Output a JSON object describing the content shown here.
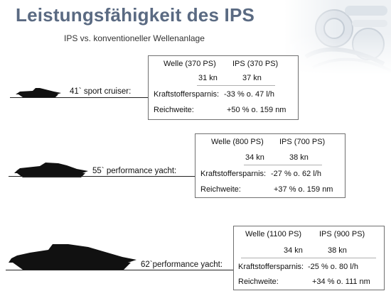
{
  "title": "Leistungsfähigkeit des IPS",
  "subtitle": "IPS vs. konventioneller Wellenanlage",
  "boats": [
    {
      "name": "41` sport cruiser:",
      "header": [
        "Welle (370 PS)",
        "IPS (370 PS)"
      ],
      "speed": [
        "31 kn",
        "37 kn"
      ],
      "fuel_label": "Kraftstoffersparnis:",
      "fuel_value": "-33 % o. 47 l/h",
      "range_label": "Reichweite:",
      "range_value": "+50 % o. 159 nm"
    },
    {
      "name": "55` performance yacht:",
      "header": [
        "Welle (800 PS)",
        "IPS (700 PS)"
      ],
      "speed": [
        "34 kn",
        "38 kn"
      ],
      "fuel_label": "Kraftstoffersparnis:",
      "fuel_value": "-27 % o. 62 l/h",
      "range_label": "Reichweite:",
      "range_value": "+37 % o. 159 nm"
    },
    {
      "name": "62`performance yacht:",
      "header": [
        "Welle (1100 PS)",
        "IPS (900 PS)"
      ],
      "speed": [
        "34 kn",
        "38 kn"
      ],
      "fuel_label": "Kraftstoffersparnis:",
      "fuel_value": "-25 % o. 80 l/h",
      "range_label": "Reichweite:",
      "range_value": "+34 % o. 111 nm"
    }
  ],
  "colors": {
    "title": "#5a6a82",
    "boat": "#111111",
    "box_border": "#707070"
  }
}
